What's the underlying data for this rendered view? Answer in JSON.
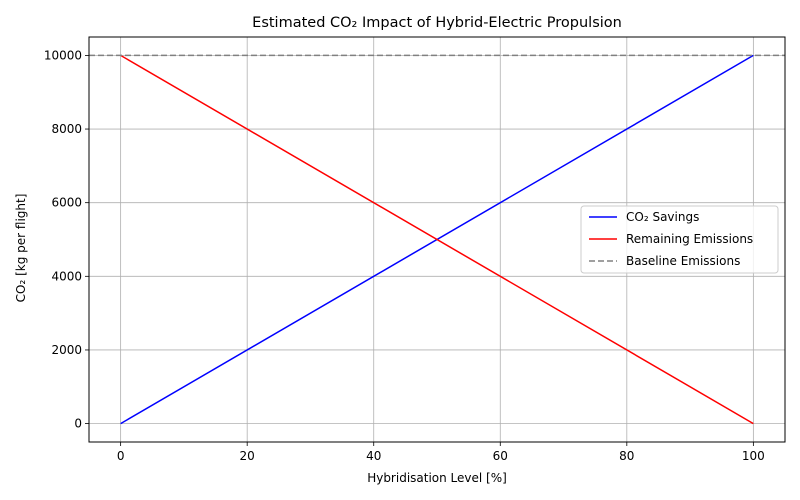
{
  "chart_data": {
    "type": "line",
    "title": "Estimated CO₂ Impact of Hybrid-Electric Propulsion",
    "xlabel": "Hybridisation Level [%]",
    "ylabel": "CO₂ [kg per flight]",
    "xlim": [
      -5,
      105
    ],
    "ylim": [
      -500,
      10500
    ],
    "xticks": [
      0,
      20,
      40,
      60,
      80,
      100
    ],
    "yticks": [
      0,
      2000,
      4000,
      6000,
      8000,
      10000
    ],
    "grid": true,
    "legend_position": "center-right",
    "x": [
      0,
      100
    ],
    "series": [
      {
        "name": "CO₂ Savings",
        "values": [
          0,
          10000
        ],
        "color": "#0000ff",
        "style": "solid"
      },
      {
        "name": "Remaining Emissions",
        "values": [
          10000,
          0
        ],
        "color": "#ff0000",
        "style": "solid"
      }
    ],
    "hlines": [
      {
        "name": "Baseline Emissions",
        "y": 10000,
        "color": "#808080",
        "style": "dashed"
      }
    ]
  }
}
